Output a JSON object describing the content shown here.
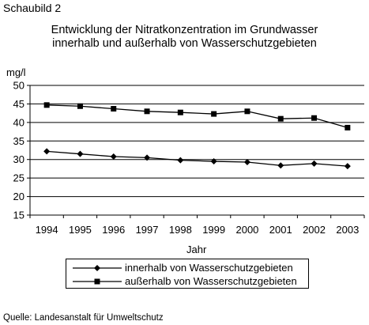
{
  "figure_label": "Schaubild 2",
  "title_lines": [
    "Entwicklung der Nitratkonzentration im Grundwasser",
    "innerhalb und außerhalb von Wasserschutzgebieten"
  ],
  "source": "Quelle: Landesanstalt für Umweltschutz",
  "chart_data": {
    "type": "line",
    "title": "Entwicklung der Nitratkonzentration im Grundwasser innerhalb und außerhalb von Wasserschutzgebieten",
    "xlabel": "Jahr",
    "ylabel": "mg/l",
    "categories": [
      "1994",
      "1995",
      "1996",
      "1997",
      "1998",
      "1999",
      "2000",
      "2001",
      "2002",
      "2003"
    ],
    "ylim": [
      15,
      50
    ],
    "yticks": [
      "15",
      "20",
      "25",
      "30",
      "35",
      "40",
      "45",
      "50"
    ],
    "grid": "horizontal",
    "legend_position": "bottom",
    "series": [
      {
        "name": "innerhalb von Wasserschutzgebieten",
        "marker": "diamond",
        "values": [
          32.2,
          31.5,
          30.8,
          30.5,
          29.8,
          29.5,
          29.3,
          28.4,
          28.9,
          28.2
        ]
      },
      {
        "name": "außerhalb von Wasserschutzgebieten",
        "marker": "square",
        "values": [
          44.7,
          44.4,
          43.7,
          43.0,
          42.7,
          42.3,
          43.0,
          41.0,
          41.2,
          38.6
        ]
      }
    ],
    "colors": {
      "line": "#000000",
      "grid": "#000000"
    }
  }
}
